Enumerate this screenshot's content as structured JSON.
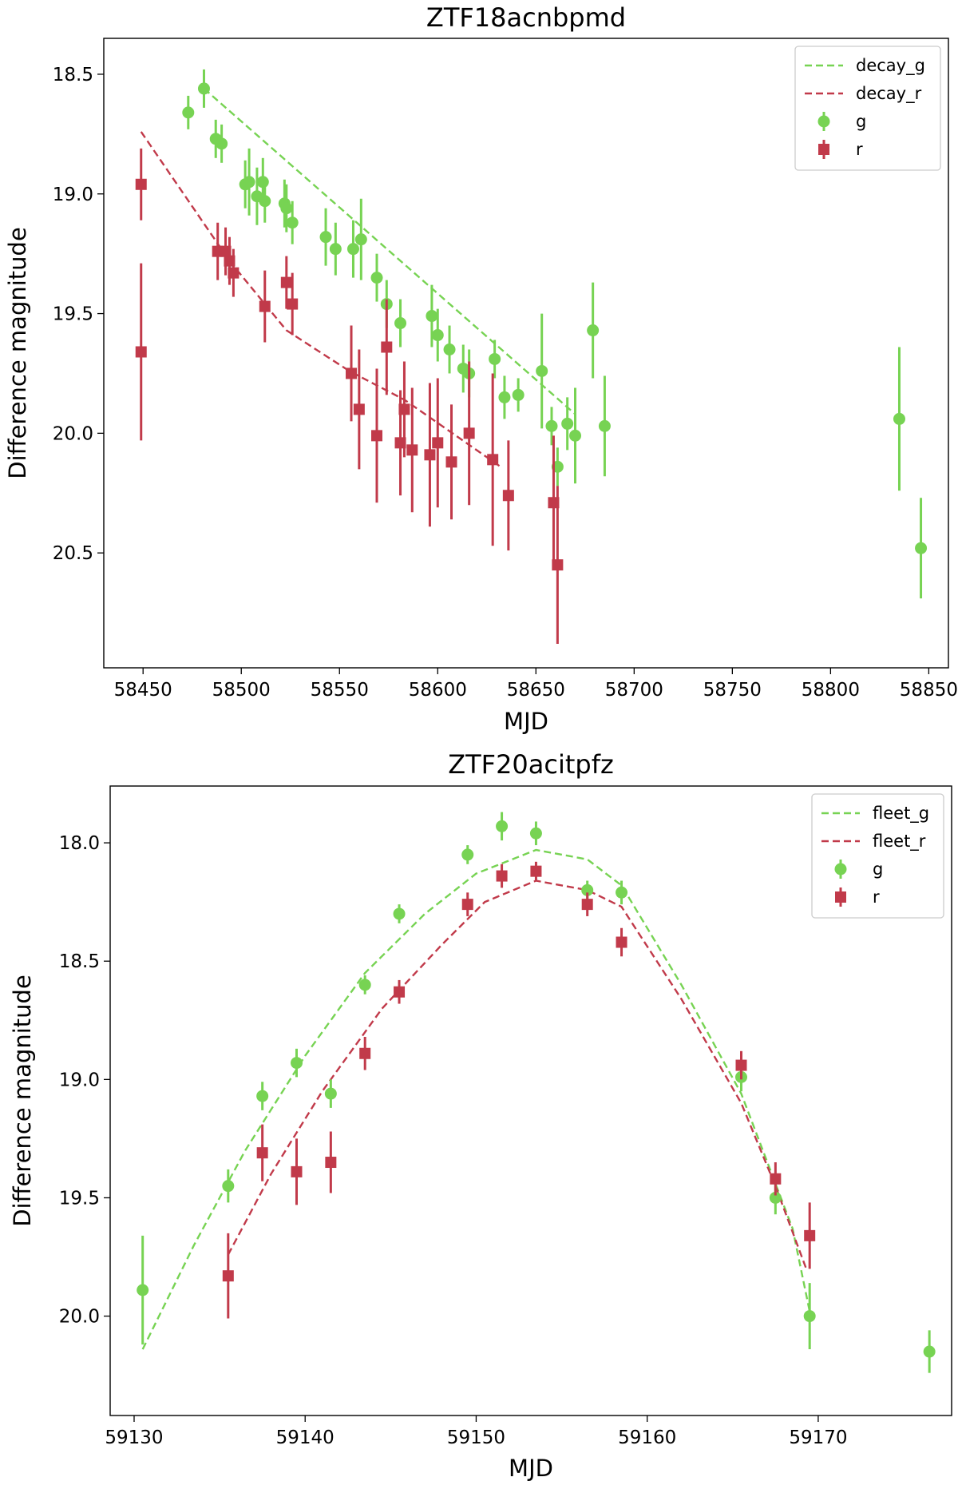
{
  "chart_data": [
    {
      "type": "scatter",
      "title": "ZTF18acnbpmd",
      "xlabel": "MJD",
      "ylabel": "Difference magnitude",
      "xlim": [
        58430,
        58860
      ],
      "ylim": [
        20.98,
        18.35
      ],
      "xticks": [
        58450,
        58500,
        58550,
        58600,
        58650,
        58700,
        58750,
        58800,
        58850
      ],
      "xtick_labels": [
        "58450",
        "58500",
        "58550",
        "58600",
        "58650",
        "58700",
        "58750",
        "58800",
        "58850"
      ],
      "yticks": [
        18.5,
        19.0,
        19.5,
        20.0,
        20.5
      ],
      "ytick_labels": [
        "18.5",
        "19.0",
        "19.5",
        "20.0",
        "20.5"
      ],
      "legend_position": "top-right",
      "grid": false,
      "series": [
        {
          "name": "decay_g",
          "kind": "line",
          "style": "dashed",
          "color": "#77d353",
          "points": [
            {
              "x": 58481,
              "y": 18.56
            },
            {
              "x": 58670,
              "y": 19.92
            }
          ]
        },
        {
          "name": "decay_r",
          "kind": "line",
          "style": "dashed",
          "color": "#c13a4a",
          "points": [
            {
              "x": 58449,
              "y": 18.74
            },
            {
              "x": 58494,
              "y": 19.28
            },
            {
              "x": 58523,
              "y": 19.57
            },
            {
              "x": 58555,
              "y": 19.74
            },
            {
              "x": 58583,
              "y": 19.86
            },
            {
              "x": 58632,
              "y": 20.14
            }
          ]
        },
        {
          "name": "g",
          "kind": "points",
          "marker": "circle",
          "color": "#77d353",
          "points": [
            {
              "x": 58473,
              "y": 18.66,
              "err": 0.07
            },
            {
              "x": 58481,
              "y": 18.56,
              "err": 0.08
            },
            {
              "x": 58487,
              "y": 18.77,
              "err": 0.08
            },
            {
              "x": 58490,
              "y": 18.79,
              "err": 0.08
            },
            {
              "x": 58502,
              "y": 18.96,
              "err": 0.1
            },
            {
              "x": 58504,
              "y": 18.95,
              "err": 0.14
            },
            {
              "x": 58508,
              "y": 19.01,
              "err": 0.12
            },
            {
              "x": 58511,
              "y": 18.95,
              "err": 0.1
            },
            {
              "x": 58512,
              "y": 19.03,
              "err": 0.09
            },
            {
              "x": 58522,
              "y": 19.04,
              "err": 0.1
            },
            {
              "x": 58523,
              "y": 19.06,
              "err": 0.1
            },
            {
              "x": 58526,
              "y": 19.12,
              "err": 0.09
            },
            {
              "x": 58543,
              "y": 19.18,
              "err": 0.12
            },
            {
              "x": 58548,
              "y": 19.23,
              "err": 0.11
            },
            {
              "x": 58557,
              "y": 19.23,
              "err": 0.12
            },
            {
              "x": 58561,
              "y": 19.19,
              "err": 0.17
            },
            {
              "x": 58569,
              "y": 19.35,
              "err": 0.1
            },
            {
              "x": 58574,
              "y": 19.46,
              "err": 0.1
            },
            {
              "x": 58581,
              "y": 19.54,
              "err": 0.1
            },
            {
              "x": 58597,
              "y": 19.51,
              "err": 0.13
            },
            {
              "x": 58600,
              "y": 19.59,
              "err": 0.11
            },
            {
              "x": 58606,
              "y": 19.65,
              "err": 0.1
            },
            {
              "x": 58613,
              "y": 19.73,
              "err": 0.1
            },
            {
              "x": 58616,
              "y": 19.75,
              "err": 0.1
            },
            {
              "x": 58629,
              "y": 19.69,
              "err": 0.08
            },
            {
              "x": 58634,
              "y": 19.85,
              "err": 0.09
            },
            {
              "x": 58641,
              "y": 19.84,
              "err": 0.07
            },
            {
              "x": 58653,
              "y": 19.74,
              "err": 0.24
            },
            {
              "x": 58658,
              "y": 19.97,
              "err": 0.08
            },
            {
              "x": 58661,
              "y": 20.14,
              "err": 0.08
            },
            {
              "x": 58666,
              "y": 19.96,
              "err": 0.11
            },
            {
              "x": 58670,
              "y": 20.01,
              "err": 0.2
            },
            {
              "x": 58679,
              "y": 19.57,
              "err": 0.2
            },
            {
              "x": 58685,
              "y": 19.97,
              "err": 0.21
            },
            {
              "x": 58835,
              "y": 19.94,
              "err": 0.3
            },
            {
              "x": 58846,
              "y": 20.48,
              "err": 0.21
            }
          ]
        },
        {
          "name": "r",
          "kind": "points",
          "marker": "square",
          "color": "#c13a4a",
          "points": [
            {
              "x": 58449,
              "y": 18.96,
              "err": 0.15
            },
            {
              "x": 58449,
              "y": 19.66,
              "err": 0.37
            },
            {
              "x": 58488,
              "y": 19.24,
              "err": 0.12
            },
            {
              "x": 58492,
              "y": 19.24,
              "err": 0.1
            },
            {
              "x": 58494,
              "y": 19.28,
              "err": 0.1
            },
            {
              "x": 58496,
              "y": 19.33,
              "err": 0.1
            },
            {
              "x": 58512,
              "y": 19.47,
              "err": 0.15
            },
            {
              "x": 58523,
              "y": 19.37,
              "err": 0.11
            },
            {
              "x": 58526,
              "y": 19.46,
              "err": 0.13
            },
            {
              "x": 58556,
              "y": 19.75,
              "err": 0.2
            },
            {
              "x": 58560,
              "y": 19.9,
              "err": 0.25
            },
            {
              "x": 58569,
              "y": 20.01,
              "err": 0.28
            },
            {
              "x": 58574,
              "y": 19.64,
              "err": 0.2
            },
            {
              "x": 58581,
              "y": 20.04,
              "err": 0.22
            },
            {
              "x": 58583,
              "y": 19.9,
              "err": 0.2
            },
            {
              "x": 58587,
              "y": 20.07,
              "err": 0.26
            },
            {
              "x": 58596,
              "y": 20.09,
              "err": 0.3
            },
            {
              "x": 58600,
              "y": 20.04,
              "err": 0.27
            },
            {
              "x": 58607,
              "y": 20.12,
              "err": 0.24
            },
            {
              "x": 58616,
              "y": 20.0,
              "err": 0.3
            },
            {
              "x": 58628,
              "y": 20.11,
              "err": 0.36
            },
            {
              "x": 58636,
              "y": 20.26,
              "err": 0.23
            },
            {
              "x": 58659,
              "y": 20.29,
              "err": 0.28
            },
            {
              "x": 58661,
              "y": 20.55,
              "err": 0.33
            }
          ]
        }
      ]
    },
    {
      "type": "scatter",
      "title": "ZTF20acitpfz",
      "xlabel": "MJD",
      "ylabel": "Difference magnitude",
      "xlim": [
        59128.6,
        59177.8
      ],
      "ylim": [
        20.42,
        17.76
      ],
      "xticks": [
        59130,
        59140,
        59150,
        59160,
        59170
      ],
      "xtick_labels": [
        "59130",
        "59140",
        "59150",
        "59160",
        "59170"
      ],
      "yticks": [
        18.0,
        18.5,
        19.0,
        19.5,
        20.0
      ],
      "ytick_labels": [
        "18.0",
        "18.5",
        "19.0",
        "19.5",
        "20.0"
      ],
      "legend_position": "top-right",
      "grid": false,
      "series": [
        {
          "name": "fleet_g",
          "kind": "line",
          "style": "dashed",
          "color": "#77d353",
          "points": [
            {
              "x": 59130.5,
              "y": 20.14
            },
            {
              "x": 59133.5,
              "y": 19.7
            },
            {
              "x": 59136.5,
              "y": 19.3
            },
            {
              "x": 59140,
              "y": 18.9
            },
            {
              "x": 59143.5,
              "y": 18.55
            },
            {
              "x": 59147,
              "y": 18.3
            },
            {
              "x": 59150,
              "y": 18.13
            },
            {
              "x": 59153.5,
              "y": 18.03
            },
            {
              "x": 59156.5,
              "y": 18.07
            },
            {
              "x": 59158.5,
              "y": 18.18
            },
            {
              "x": 59162,
              "y": 18.6
            },
            {
              "x": 59165.5,
              "y": 19.06
            },
            {
              "x": 59168.5,
              "y": 19.63
            },
            {
              "x": 59169.5,
              "y": 19.98
            }
          ]
        },
        {
          "name": "fleet_r",
          "kind": "line",
          "style": "dashed",
          "color": "#c13a4a",
          "points": [
            {
              "x": 59135.5,
              "y": 19.74
            },
            {
              "x": 59138,
              "y": 19.4
            },
            {
              "x": 59141,
              "y": 19.05
            },
            {
              "x": 59144.5,
              "y": 18.7
            },
            {
              "x": 59148,
              "y": 18.43
            },
            {
              "x": 59150.5,
              "y": 18.25
            },
            {
              "x": 59153.5,
              "y": 18.16
            },
            {
              "x": 59156.5,
              "y": 18.2
            },
            {
              "x": 59158.5,
              "y": 18.27
            },
            {
              "x": 59162,
              "y": 18.66
            },
            {
              "x": 59165.5,
              "y": 19.1
            },
            {
              "x": 59167.5,
              "y": 19.45
            },
            {
              "x": 59169.3,
              "y": 19.8
            }
          ]
        },
        {
          "name": "g",
          "kind": "points",
          "marker": "circle",
          "color": "#77d353",
          "points": [
            {
              "x": 59130.5,
              "y": 19.89,
              "err": 0.23
            },
            {
              "x": 59135.5,
              "y": 19.45,
              "err": 0.07
            },
            {
              "x": 59137.5,
              "y": 19.07,
              "err": 0.06
            },
            {
              "x": 59139.5,
              "y": 18.93,
              "err": 0.06
            },
            {
              "x": 59141.5,
              "y": 19.06,
              "err": 0.06
            },
            {
              "x": 59143.5,
              "y": 18.6,
              "err": 0.04
            },
            {
              "x": 59145.5,
              "y": 18.3,
              "err": 0.04
            },
            {
              "x": 59149.5,
              "y": 18.05,
              "err": 0.04
            },
            {
              "x": 59151.5,
              "y": 17.93,
              "err": 0.06
            },
            {
              "x": 59153.5,
              "y": 17.96,
              "err": 0.05
            },
            {
              "x": 59156.5,
              "y": 18.2,
              "err": 0.04
            },
            {
              "x": 59158.5,
              "y": 18.21,
              "err": 0.05
            },
            {
              "x": 59165.5,
              "y": 18.99,
              "err": 0.06
            },
            {
              "x": 59167.5,
              "y": 19.5,
              "err": 0.07
            },
            {
              "x": 59169.5,
              "y": 20.0,
              "err": 0.14
            },
            {
              "x": 59176.5,
              "y": 20.15,
              "err": 0.09
            }
          ]
        },
        {
          "name": "r",
          "kind": "points",
          "marker": "square",
          "color": "#c13a4a",
          "points": [
            {
              "x": 59135.5,
              "y": 19.83,
              "err": 0.18
            },
            {
              "x": 59137.5,
              "y": 19.31,
              "err": 0.12
            },
            {
              "x": 59139.5,
              "y": 19.39,
              "err": 0.14
            },
            {
              "x": 59141.5,
              "y": 19.35,
              "err": 0.13
            },
            {
              "x": 59143.5,
              "y": 18.89,
              "err": 0.07
            },
            {
              "x": 59145.5,
              "y": 18.63,
              "err": 0.05
            },
            {
              "x": 59149.5,
              "y": 18.26,
              "err": 0.05
            },
            {
              "x": 59151.5,
              "y": 18.14,
              "err": 0.05
            },
            {
              "x": 59153.5,
              "y": 18.12,
              "err": 0.04
            },
            {
              "x": 59156.5,
              "y": 18.26,
              "err": 0.05
            },
            {
              "x": 59158.5,
              "y": 18.42,
              "err": 0.06
            },
            {
              "x": 59165.5,
              "y": 18.94,
              "err": 0.06
            },
            {
              "x": 59167.5,
              "y": 19.42,
              "err": 0.07
            },
            {
              "x": 59169.5,
              "y": 19.66,
              "err": 0.14
            }
          ]
        }
      ]
    }
  ]
}
